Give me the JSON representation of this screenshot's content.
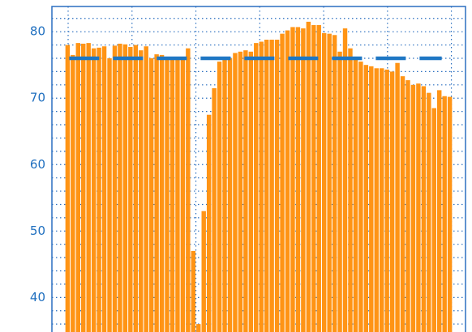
{
  "chart_data": {
    "type": "bar",
    "x": [
      1,
      2,
      3,
      4,
      5,
      6,
      7,
      8,
      9,
      10,
      11,
      12,
      13,
      14,
      15,
      16,
      17,
      18,
      19,
      20,
      21,
      22,
      23,
      24,
      25,
      26,
      27,
      28,
      29,
      30,
      31,
      32,
      33,
      34,
      35,
      36,
      37,
      38,
      39,
      40,
      41,
      42,
      43,
      44,
      45,
      46,
      47,
      48,
      49,
      50,
      51,
      52,
      53,
      54,
      55,
      56,
      57,
      58,
      59,
      60,
      61,
      62,
      63,
      64,
      65,
      66,
      67,
      68,
      69,
      70,
      71,
      72,
      73,
      74
    ],
    "values": [
      78,
      76.5,
      78.3,
      78.2,
      78.3,
      77.5,
      77.6,
      77.8,
      76,
      77.9,
      78.2,
      78.1,
      77.7,
      78,
      77.2,
      77.8,
      76,
      76.6,
      76.5,
      76,
      76,
      76,
      76,
      77.5,
      47,
      36,
      53,
      67.5,
      71.5,
      75.5,
      75.8,
      76,
      76.8,
      77,
      77.2,
      77,
      78.3,
      78.5,
      78.8,
      78.8,
      78.8,
      79.7,
      80.2,
      80.7,
      80.7,
      80.5,
      81.5,
      81,
      81,
      79.8,
      79.7,
      79.5,
      77,
      80.5,
      77.5,
      75.8,
      75.5,
      75,
      74.8,
      74.5,
      74.5,
      74.3,
      74,
      75.3,
      73.3,
      72.7,
      72,
      72.2,
      71.8,
      70.8,
      68.5,
      71.2,
      70.3,
      70.2
    ],
    "color": "#ff9415",
    "reference_line": {
      "value": 76,
      "color": "#1f77c4"
    },
    "xlim": [
      -2,
      77
    ],
    "xticks": [
      1.1,
      13.3,
      25.5,
      37.7,
      49.9,
      62.1,
      74.3
    ],
    "ylim": [
      34.8,
      83.8
    ],
    "yticks": [
      40,
      50,
      60,
      70,
      80
    ],
    "yminor_ticks": [
      36,
      38,
      42,
      44,
      46,
      48,
      52,
      54,
      56,
      58,
      62,
      64,
      66,
      68,
      72,
      74,
      76,
      78,
      82
    ],
    "grid": true
  }
}
